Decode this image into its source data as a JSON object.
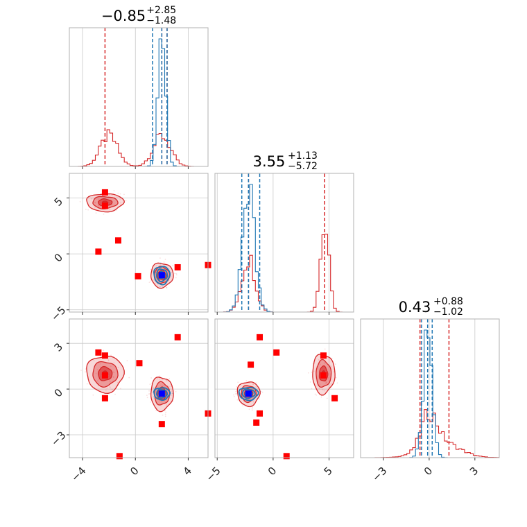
{
  "colors": {
    "red": "#d62728",
    "blue": "#1f77b4",
    "marker_red": "#ff0000",
    "marker_blue": "#0000ff"
  },
  "chart_data": {
    "type": "corner",
    "parameters": [
      {
        "title_value": "−0.85",
        "title_plus": "+2.85",
        "title_minus": "−1.48",
        "range": [
          -5,
          5.5
        ],
        "ticks": [
          -4,
          0,
          4
        ],
        "tick_labels": [
          "−4",
          "0",
          "4"
        ]
      },
      {
        "title_value": "3.55",
        "title_plus": "+1.13",
        "title_minus": "−5.72",
        "range": [
          -5.2,
          7.2
        ],
        "ticks": [
          -5,
          0,
          5
        ],
        "tick_labels": [
          "−5",
          "0",
          "5"
        ]
      },
      {
        "title_value": "0.43",
        "title_plus": "+0.88",
        "title_minus": "−1.02",
        "range": [
          -4.5,
          4.6
        ],
        "ticks": [
          -3,
          0,
          3
        ],
        "tick_labels": [
          "−3",
          "0",
          "3"
        ]
      }
    ],
    "series": [
      {
        "name": "",
        "color": "#d62728",
        "marginals": [
          {
            "modes": [
              {
                "mu": -2.0,
                "sigma": 0.65,
                "w": 0.5
              },
              {
                "mu": 2.0,
                "sigma": 0.65,
                "w": 0.5
              }
            ],
            "quantiles": [
              -2.3,
              2.0,
              2.4
            ]
          },
          {
            "modes": [
              {
                "mu": 4.6,
                "sigma": 0.38,
                "w": 0.5
              },
              {
                "mu": -2.2,
                "sigma": 0.6,
                "w": 0.5
              }
            ],
            "quantiles": [
              -2.2,
              4.6
            ]
          },
          {
            "modes": [
              {
                "mu": 0.7,
                "sigma": 1.2,
                "w": 0.55
              },
              {
                "mu": 0.0,
                "sigma": 0.5,
                "w": 0.45
              }
            ],
            "quantiles": [
              -0.6,
              1.3
            ]
          }
        ],
        "blobs": {
          "1_0": [
            {
              "x": -2.3,
              "y": 4.6,
              "sx": 1.4,
              "sy": 0.8
            },
            {
              "x": 2.0,
              "y": -1.9,
              "sx": 0.85,
              "sy": 1.1
            }
          ],
          "2_0": [
            {
              "x": -2.3,
              "y": 1.0,
              "sx": 1.4,
              "sy": 1.2
            },
            {
              "x": 2.0,
              "y": -0.3,
              "sx": 0.85,
              "sy": 1.1
            }
          ],
          "2_1": [
            {
              "x": -2.2,
              "y": -0.3,
              "sx": 1.0,
              "sy": 0.8
            },
            {
              "x": 4.5,
              "y": 1.0,
              "sx": 1.0,
              "sy": 1.3
            }
          ]
        },
        "markers": {
          "1_0": [
            [
              -2.3,
              4.3
            ],
            [
              -2.3,
              5.5
            ],
            [
              -1.3,
              1.2
            ],
            [
              -2.8,
              0.2
            ],
            [
              0.2,
              -2.0
            ],
            [
              3.2,
              -1.2
            ],
            [
              5.5,
              -1.0
            ]
          ],
          "2_0": [
            [
              -2.3,
              0.9
            ],
            [
              -2.3,
              2.2
            ],
            [
              -2.8,
              2.4
            ],
            [
              -2.3,
              -0.6
            ],
            [
              0.3,
              1.7
            ],
            [
              3.2,
              3.4
            ],
            [
              2.0,
              -2.3
            ],
            [
              5.5,
              -1.6
            ],
            [
              -1.2,
              -4.4
            ]
          ],
          "2_1": [
            [
              -2.0,
              1.6
            ],
            [
              -1.2,
              3.4
            ],
            [
              0.3,
              2.4
            ],
            [
              4.5,
              2.2
            ],
            [
              4.5,
              0.9
            ],
            [
              5.5,
              -0.6
            ],
            [
              -1.2,
              -1.6
            ],
            [
              -1.5,
              -2.2
            ],
            [
              1.2,
              -4.4
            ]
          ]
        }
      },
      {
        "name": "",
        "color": "#1f77b4",
        "marginals": [
          {
            "modes": [
              {
                "mu": 2.0,
                "sigma": 0.3,
                "w": 1.0
              }
            ],
            "quantiles": [
              1.3,
              2.0,
              2.4
            ]
          },
          {
            "modes": [
              {
                "mu": -2.2,
                "sigma": 0.55,
                "w": 1.0
              }
            ],
            "quantiles": [
              -2.8,
              -2.2,
              -1.2
            ]
          },
          {
            "modes": [
              {
                "mu": -0.1,
                "sigma": 0.3,
                "w": 1.0
              }
            ],
            "quantiles": [
              -0.5,
              -0.1,
              0.2
            ]
          }
        ],
        "blobs": {
          "1_0": [
            {
              "x": 2.0,
              "y": -1.9,
              "sx": 0.6,
              "sy": 0.8
            }
          ],
          "2_0": [
            {
              "x": 2.0,
              "y": -0.3,
              "sx": 0.6,
              "sy": 0.4
            }
          ],
          "2_1": [
            {
              "x": -2.2,
              "y": -0.3,
              "sx": 0.85,
              "sy": 0.42
            }
          ]
        },
        "markers": {
          "1_0": [
            [
              2.0,
              -1.9
            ]
          ],
          "2_0": [
            [
              2.0,
              -0.3
            ]
          ],
          "2_1": [
            [
              -2.2,
              -0.3
            ]
          ]
        }
      }
    ],
    "grid": true,
    "legend": "none"
  }
}
